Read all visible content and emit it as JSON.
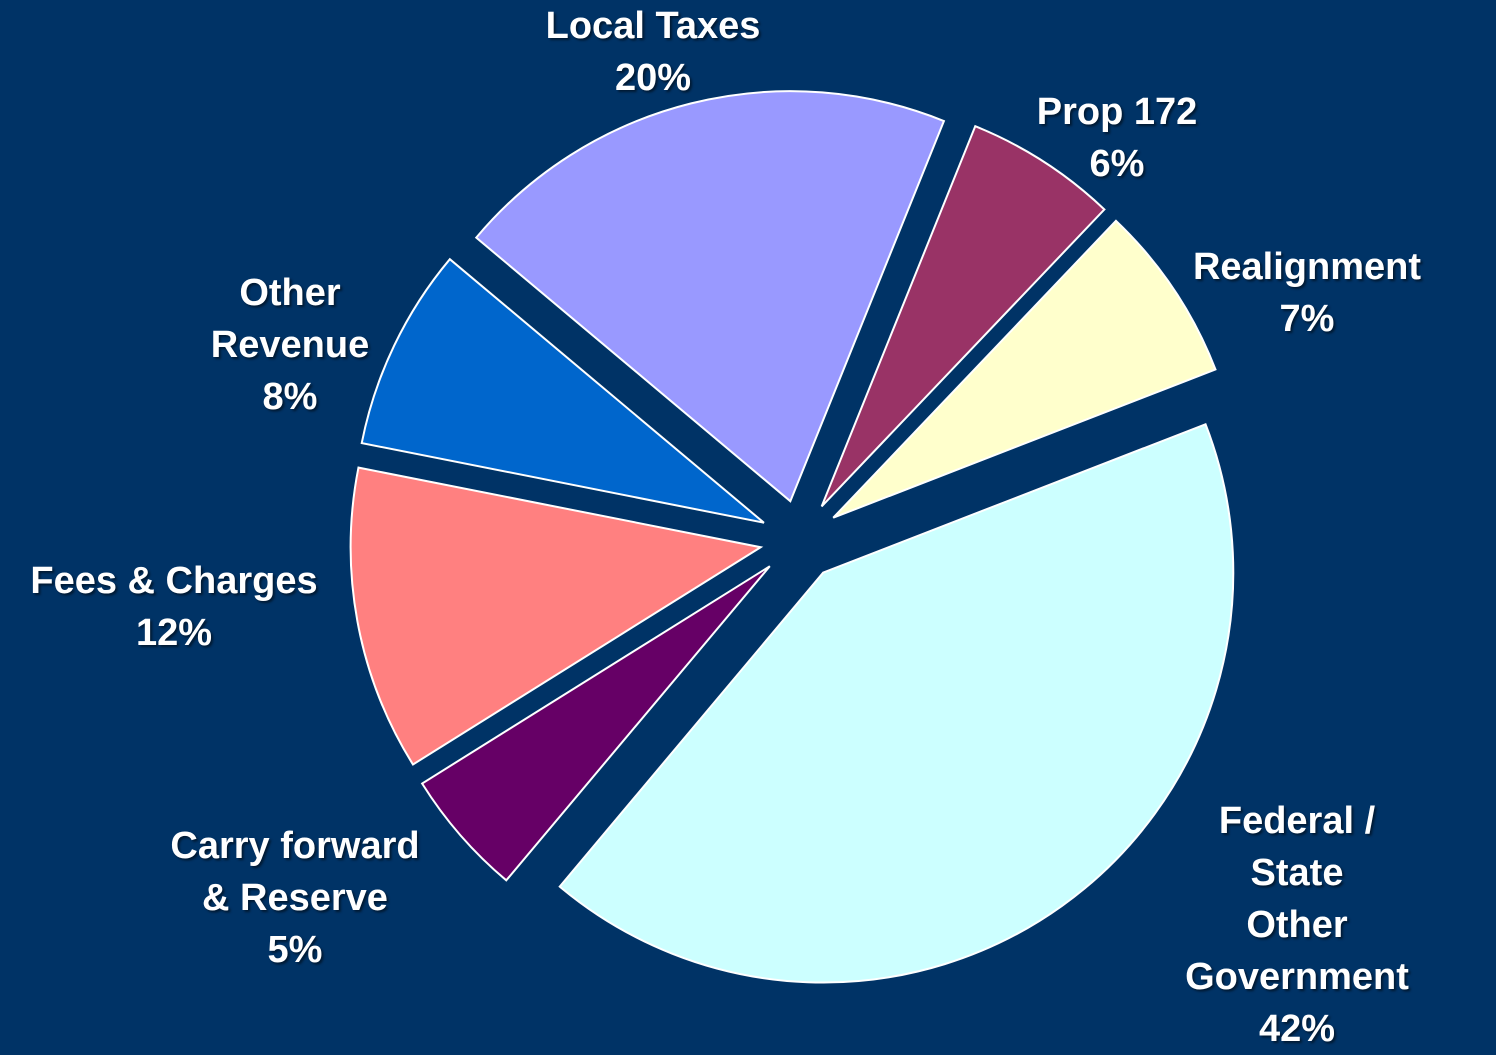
{
  "chart_data": {
    "type": "pie",
    "categories": [
      "Local Taxes",
      "Prop 172",
      "Realignment",
      "Federal / State\nOther Government",
      "Carry forward\n& Reserve",
      "Fees & Charges",
      "Other\nRevenue"
    ],
    "values": [
      20,
      6,
      7,
      42,
      5,
      12,
      8
    ],
    "value_labels": [
      "20%",
      "6%",
      "7%",
      "42%",
      "5%",
      "12%",
      "8%"
    ],
    "colors": [
      "#9999ff",
      "#993366",
      "#ffffcc",
      "#ccffff",
      "#660066",
      "#ff8080",
      "#0066cc"
    ],
    "exploded": true
  }
}
